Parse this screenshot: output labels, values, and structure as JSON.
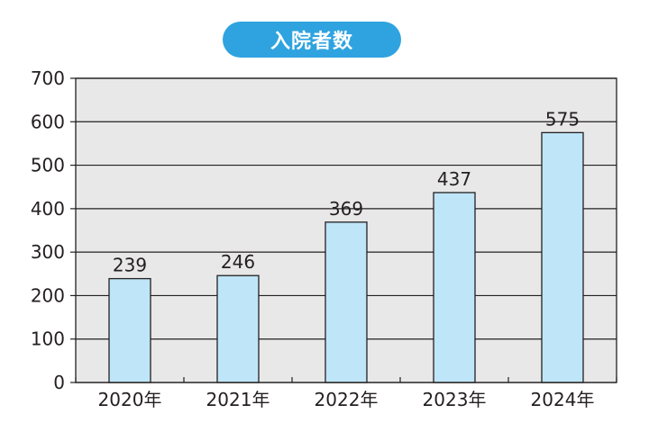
{
  "colors": {
    "title_bg": "#2fa3df",
    "plot_bg": "#e8e8e8",
    "bar_fill": "#bfe5f8",
    "bar_stroke": "#231f20",
    "grid": "#231f20"
  },
  "chart_data": {
    "type": "bar",
    "title": "入院者数",
    "categories": [
      "2020年",
      "2021年",
      "2022年",
      "2023年",
      "2024年"
    ],
    "values": [
      239,
      246,
      369,
      437,
      575
    ],
    "data_labels": [
      "239",
      "246",
      "369",
      "437",
      "575"
    ],
    "xlabel": "",
    "ylabel": "",
    "ylim": [
      0,
      700
    ],
    "yticks": [
      0,
      100,
      200,
      300,
      400,
      500,
      600,
      700
    ],
    "ytick_labels": [
      "0",
      "100",
      "200",
      "300",
      "400",
      "500",
      "600",
      "700"
    ],
    "grid": true,
    "legend": "none"
  }
}
